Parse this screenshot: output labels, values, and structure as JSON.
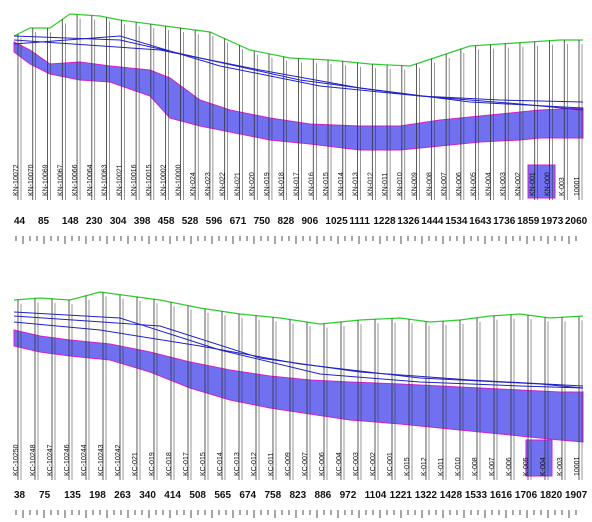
{
  "colors": {
    "ground": "#2ecc2e",
    "pipe_fill": "#7070f0",
    "pipe_stroke": "#d020d0",
    "blue_line": "#2020d0",
    "station_line": "#333333",
    "text": "#111111"
  },
  "profiles": [
    {
      "id": "top",
      "station_ids": [
        "KN-10072",
        "KN-10070",
        "KN-10069",
        "KN-10067",
        "KN-10066",
        "KN-10064",
        "KN-10063",
        "KN-10021",
        "KN-10016",
        "KN-10015",
        "KN-10002",
        "KN-10000",
        "KN-024",
        "KN-023",
        "KN-022",
        "KN-021",
        "KN-020",
        "KN-019",
        "KN-018",
        "KN-017",
        "KN-016",
        "KN-015",
        "KN-014",
        "KN-013",
        "KN-012",
        "KN-011",
        "KN-010",
        "KN-009",
        "KN-008",
        "KN-007",
        "KN-006",
        "KN-005",
        "KN-004",
        "KN-003",
        "KN-002",
        "KN-001",
        "KN-000",
        "K-003",
        "10001"
      ],
      "distances": [
        "44",
        "85",
        "148",
        "230",
        "304",
        "398",
        "458",
        "528",
        "596",
        "671",
        "750",
        "828",
        "906",
        "1025",
        "1111",
        "1228",
        "1326",
        "1444",
        "1534",
        "1643",
        "1736",
        "1859",
        "1973",
        "2060"
      ]
    },
    {
      "id": "bottom",
      "station_ids": [
        "KC-10250",
        "KC-10248",
        "KC-10247",
        "KC-10246",
        "KC-10244",
        "KC-10243",
        "KC-10242",
        "KC-021",
        "KC-019",
        "KC-018",
        "KC-017",
        "KC-015",
        "KC-014",
        "KC-013",
        "KC-012",
        "KC-011",
        "KC-009",
        "KC-007",
        "KC-006",
        "KC-004",
        "KC-003",
        "KC-002",
        "KC-001",
        "K-015",
        "K-012",
        "K-011",
        "K-010",
        "K-008",
        "K-007",
        "K-006",
        "K-005",
        "K-004",
        "K-003",
        "10001"
      ],
      "distances": [
        "38",
        "75",
        "135",
        "198",
        "263",
        "340",
        "414",
        "508",
        "565",
        "674",
        "758",
        "823",
        "886",
        "972",
        "1104",
        "1221",
        "1322",
        "1428",
        "1533",
        "1616",
        "1706",
        "1820",
        "1907"
      ]
    }
  ]
}
